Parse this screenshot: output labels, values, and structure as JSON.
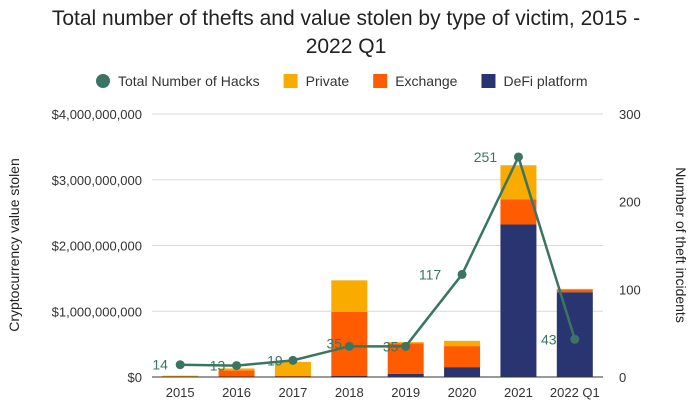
{
  "chart_data": {
    "type": "bar",
    "title_lines": [
      "Total number of thefts and value stolen by type of victim, 2015 -",
      "2022 Q1"
    ],
    "ylabel_left": "Cryptocurrency value stolen",
    "ylabel_right": "Number of theft incidents",
    "categories": [
      "2015",
      "2016",
      "2017",
      "2018",
      "2019",
      "2020",
      "2021",
      "2022 Q1"
    ],
    "y_left_ticks": [
      "$0",
      "$1,000,000,000",
      "$2,000,000,000",
      "$3,000,000,000",
      "$4,000,000,000"
    ],
    "y_left_range": [
      0,
      4000000000
    ],
    "y_right_ticks": [
      "0",
      "100",
      "200",
      "300"
    ],
    "y_right_range": [
      0,
      300
    ],
    "stack_order": [
      "DeFi platform",
      "Exchange",
      "Private"
    ],
    "series": [
      {
        "name": "Private",
        "type": "bar",
        "color": "#f9ab00",
        "values": [
          10000000,
          30000000,
          210000000,
          480000000,
          20000000,
          80000000,
          520000000,
          10000000
        ]
      },
      {
        "name": "Exchange",
        "type": "bar",
        "color": "#ff5b00",
        "values": [
          10000000,
          100000000,
          20000000,
          970000000,
          460000000,
          320000000,
          380000000,
          40000000
        ]
      },
      {
        "name": "DeFi platform",
        "type": "bar",
        "color": "#283571",
        "values": [
          0,
          0,
          0,
          20000000,
          50000000,
          150000000,
          2320000000,
          1290000000
        ]
      },
      {
        "name": "Total Number of Hacks",
        "type": "line",
        "axis": "right",
        "color": "#3a7563",
        "values": [
          14,
          13,
          19,
          35,
          35,
          117,
          251,
          43
        ]
      }
    ],
    "legend_order": [
      "Total Number of Hacks",
      "Private",
      "Exchange",
      "DeFi platform"
    ],
    "legend_position": "top",
    "grid": "horizontal"
  }
}
